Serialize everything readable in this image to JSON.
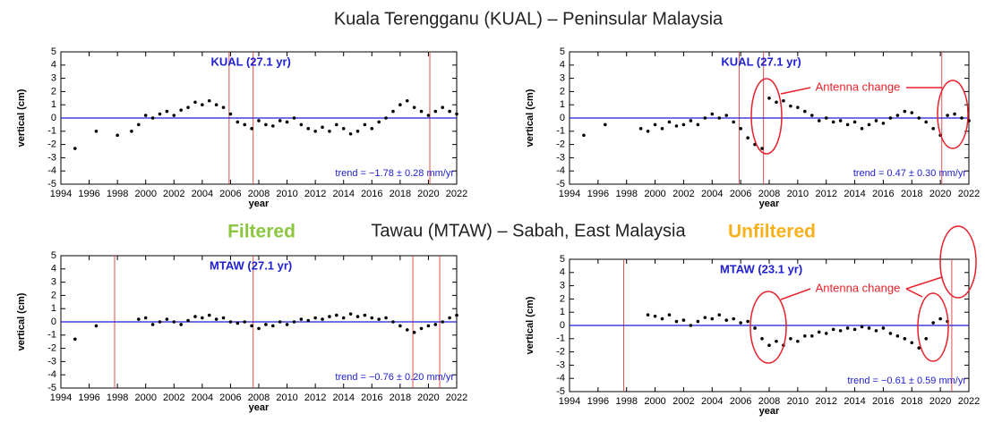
{
  "figure": {
    "title": "Kuala Terengganu (KUAL) – Peninsular Malaysia",
    "subtitle": "Tawau (MTAW) – Sabah, East Malaysia",
    "left_label": "Filtered",
    "right_label": "Unfiltered"
  },
  "chart_data": [
    {
      "type": "scatter",
      "label": "KUAL (27.1 yr)",
      "trend": "trend = −1.78 ± 0.28 mm/yr",
      "x_label": "year",
      "y_label": "vertical (cm)",
      "xlim": [
        1994,
        2022
      ],
      "ylim": [
        -5,
        5
      ],
      "xticks": [
        1994,
        1996,
        1998,
        2000,
        2002,
        2004,
        2006,
        2008,
        2010,
        2012,
        2014,
        2016,
        2018,
        2020,
        2022
      ],
      "yticks": [
        5,
        4,
        3,
        2,
        1,
        0,
        -1,
        -2,
        -3,
        -4,
        -5
      ],
      "reference_line": 0,
      "events": [
        2005.9,
        2007.6,
        2020.1
      ],
      "event_color": "#d9534f",
      "color": "#000000",
      "x": [
        1995,
        1996.5,
        1998,
        1999,
        1999.5,
        2000,
        2000.5,
        2001,
        2001.5,
        2002,
        2002.5,
        2003,
        2003.5,
        2004,
        2004.5,
        2005,
        2005.5,
        2006,
        2006.5,
        2007,
        2007.5,
        2008,
        2008.5,
        2009,
        2009.5,
        2010,
        2010.5,
        2011,
        2011.5,
        2012,
        2012.5,
        2013,
        2013.5,
        2014,
        2014.5,
        2015,
        2015.5,
        2016,
        2016.5,
        2017,
        2017.5,
        2018,
        2018.5,
        2019,
        2019.5,
        2020,
        2020.5,
        2021,
        2021.5,
        2022
      ],
      "values": [
        -2.3,
        -1.0,
        -1.3,
        -1.0,
        -0.5,
        0.2,
        0.0,
        0.3,
        0.5,
        0.2,
        0.6,
        0.8,
        1.2,
        1.0,
        1.3,
        1.0,
        0.8,
        0.3,
        -0.3,
        -0.5,
        -0.8,
        -0.2,
        -0.5,
        -0.6,
        -0.2,
        -0.3,
        0.0,
        -0.5,
        -0.8,
        -1.0,
        -0.7,
        -1.0,
        -0.5,
        -0.8,
        -1.2,
        -1.0,
        -0.5,
        -0.8,
        -0.3,
        0.0,
        0.5,
        1.0,
        1.3,
        0.8,
        0.5,
        0.2,
        0.5,
        0.8,
        0.5,
        0.3
      ]
    },
    {
      "type": "scatter",
      "label": "KUAL (27.1 yr)",
      "trend": "trend = 0.47 ± 0.30 mm/yr",
      "x_label": "year",
      "y_label": "vertical (cm)",
      "annotation": "Antenna  change",
      "xlim": [
        1994,
        2022
      ],
      "ylim": [
        -5,
        5
      ],
      "xticks": [
        1994,
        1996,
        1998,
        2000,
        2002,
        2004,
        2006,
        2008,
        2010,
        2012,
        2014,
        2016,
        2018,
        2020,
        2022
      ],
      "yticks": [
        5,
        4,
        3,
        2,
        1,
        0,
        -1,
        -2,
        -3,
        -4,
        -5
      ],
      "reference_line": 0,
      "events": [
        2005.9,
        2007.6,
        2020.1
      ],
      "event_color": "#d9534f",
      "color": "#000000",
      "x": [
        1995,
        1996.5,
        1999,
        1999.5,
        2000,
        2000.5,
        2001,
        2001.5,
        2002,
        2002.5,
        2003,
        2003.5,
        2004,
        2004.5,
        2005,
        2005.5,
        2006,
        2006.5,
        2007,
        2007.5,
        2008,
        2008.5,
        2009,
        2009.5,
        2010,
        2010.5,
        2011,
        2011.5,
        2012,
        2012.5,
        2013,
        2013.5,
        2014,
        2014.5,
        2015,
        2015.5,
        2016,
        2016.5,
        2017,
        2017.5,
        2018,
        2018.5,
        2019,
        2019.5,
        2020,
        2020.5,
        2021,
        2021.5,
        2022
      ],
      "values": [
        -1.3,
        -0.5,
        -0.8,
        -1.0,
        -0.5,
        -0.8,
        -0.3,
        -0.6,
        -0.5,
        -0.2,
        -0.5,
        0.0,
        0.3,
        0.0,
        0.2,
        -0.3,
        -0.8,
        -1.5,
        -2.0,
        -2.3,
        1.5,
        1.2,
        1.3,
        0.9,
        0.8,
        0.5,
        0.2,
        -0.2,
        0.0,
        -0.3,
        -0.2,
        -0.5,
        -0.3,
        -0.8,
        -0.5,
        -0.2,
        -0.4,
        0.0,
        0.2,
        0.5,
        0.4,
        0.0,
        -0.3,
        -0.8,
        -1.3,
        0.2,
        0.3,
        0.0,
        -0.2
      ]
    },
    {
      "type": "scatter",
      "label": "MTAW (27.1 yr)",
      "trend": "trend = −0.76 ± 0.20 mm/yr",
      "x_label": "year",
      "y_label": "vertical (cm)",
      "xlim": [
        1994,
        2022
      ],
      "ylim": [
        -5,
        5
      ],
      "xticks": [
        1994,
        1996,
        1998,
        2000,
        2002,
        2004,
        2006,
        2008,
        2010,
        2012,
        2014,
        2016,
        2018,
        2020,
        2022
      ],
      "yticks": [
        5,
        4,
        3,
        2,
        1,
        0,
        -1,
        -2,
        -3,
        -4,
        -5
      ],
      "reference_line": 0,
      "events": [
        1997.8,
        2007.6,
        2018.9,
        2020.8
      ],
      "event_color": "#d9534f",
      "color": "#000000",
      "x": [
        1995,
        1996.5,
        1999.5,
        2000,
        2000.5,
        2001,
        2001.5,
        2002,
        2002.5,
        2003,
        2003.5,
        2004,
        2004.5,
        2005,
        2005.5,
        2006,
        2006.5,
        2007,
        2007.5,
        2008,
        2008.5,
        2009,
        2009.5,
        2010,
        2010.5,
        2011,
        2011.5,
        2012,
        2012.5,
        2013,
        2013.5,
        2014,
        2014.5,
        2015,
        2015.5,
        2016,
        2016.5,
        2017,
        2017.5,
        2018,
        2018.5,
        2019,
        2019.5,
        2020,
        2020.5,
        2021,
        2021.5,
        2022
      ],
      "values": [
        -1.3,
        -0.3,
        0.2,
        0.3,
        -0.2,
        0.0,
        0.2,
        0.0,
        -0.2,
        0.1,
        0.4,
        0.3,
        0.5,
        0.2,
        0.3,
        0.0,
        -0.1,
        0.0,
        -0.3,
        -0.5,
        -0.2,
        -0.3,
        0.0,
        -0.2,
        0.0,
        0.2,
        0.1,
        0.3,
        0.2,
        0.4,
        0.5,
        0.3,
        0.6,
        0.4,
        0.5,
        0.3,
        0.2,
        0.3,
        0.0,
        -0.3,
        -0.6,
        -0.8,
        -0.5,
        -0.3,
        -0.2,
        0.0,
        0.3,
        0.5
      ]
    },
    {
      "type": "scatter",
      "label": "MTAW (23.1 yr)",
      "trend": "trend = −0.61 ± 0.59 mm/yr",
      "x_label": "year",
      "y_label": "vertical (cm)",
      "annotation": "Antenna  change",
      "xlim": [
        1994,
        2022
      ],
      "ylim": [
        -5,
        5
      ],
      "xticks": [
        1994,
        1996,
        1998,
        2000,
        2002,
        2004,
        2006,
        2008,
        2010,
        2012,
        2014,
        2016,
        2018,
        2020,
        2022
      ],
      "yticks": [
        5,
        4,
        3,
        2,
        1,
        0,
        -1,
        -2,
        -3,
        -4,
        -5
      ],
      "reference_line": 0,
      "events": [
        1997.8,
        2020.8
      ],
      "event_color": "#d9534f",
      "color": "#000000",
      "x": [
        1999.5,
        2000,
        2000.5,
        2001,
        2001.5,
        2002,
        2002.5,
        2003,
        2003.5,
        2004,
        2004.5,
        2005,
        2005.5,
        2006,
        2006.5,
        2007,
        2007.5,
        2008,
        2008.5,
        2009,
        2009.5,
        2010,
        2010.5,
        2011,
        2011.5,
        2012,
        2012.5,
        2013,
        2013.5,
        2014,
        2014.5,
        2015,
        2015.5,
        2016,
        2016.5,
        2017,
        2017.5,
        2018,
        2018.5,
        2019,
        2019.5,
        2020,
        2020.5
      ],
      "values": [
        0.8,
        0.7,
        0.5,
        0.8,
        0.3,
        0.4,
        0.0,
        0.3,
        0.6,
        0.5,
        0.8,
        0.4,
        0.5,
        0.2,
        0.3,
        -0.2,
        -1.0,
        -1.5,
        -1.2,
        -1.5,
        -1.0,
        -1.2,
        -0.8,
        -0.8,
        -0.5,
        -0.6,
        -0.3,
        -0.4,
        -0.2,
        -0.3,
        -0.1,
        -0.2,
        -0.4,
        -0.2,
        -0.6,
        -0.8,
        -1.0,
        -1.3,
        -1.7,
        -1.0,
        0.2,
        0.5,
        0.3
      ]
    }
  ]
}
